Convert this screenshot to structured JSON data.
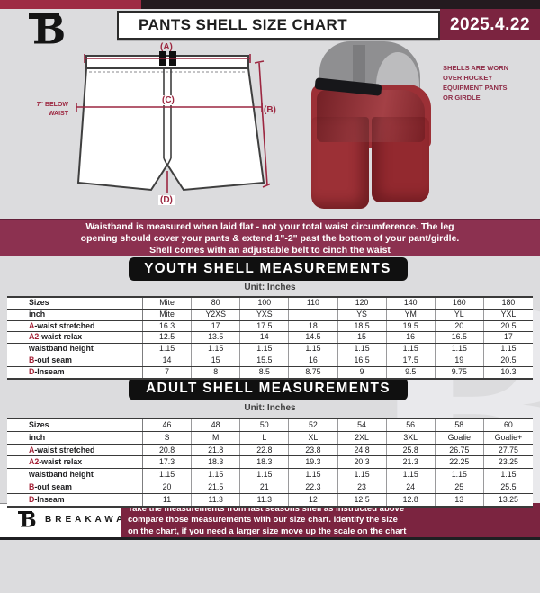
{
  "header": {
    "title": "PANTS SHELL SIZE CHART",
    "date": "2025.4.22",
    "logo_letter": "B"
  },
  "diagram": {
    "label_a": "(A)",
    "label_b": "(B)",
    "label_c": "(C)",
    "label_d": "(D)",
    "waist_note": "7\" BELOW\nWAIST",
    "photo_caption": "SHELLS ARE WORN\nOVER HOCKEY\nEQUIPMENT PANTS\nOR GIRDLE"
  },
  "notice_band": {
    "text": "Waistband is measured when laid flat - not your total waist circumference. The leg\nopening should cover your pants & extend 1\"-2\" past the bottom of your pant/girdle.\nShell comes with an adjustable belt to cinch the waist"
  },
  "youth": {
    "heading": "YOUTH SHELL MEASUREMENTS",
    "unit": "Unit: Inches",
    "table": {
      "rows": [
        {
          "prefix": "",
          "label": "Sizes",
          "values": [
            "Mite",
            "80",
            "100",
            "110",
            "120",
            "140",
            "160",
            "180"
          ]
        },
        {
          "prefix": "",
          "label": "inch",
          "values": [
            "Mite",
            "Y2XS",
            "YXS",
            "",
            "YS",
            "YM",
            "YL",
            "YXL"
          ]
        },
        {
          "prefix": "A",
          "label": "-waist stretched",
          "values": [
            "16.3",
            "17",
            "17.5",
            "18",
            "18.5",
            "19.5",
            "20",
            "20.5"
          ]
        },
        {
          "prefix": "A2",
          "label": "-waist relax",
          "values": [
            "12.5",
            "13.5",
            "14",
            "14.5",
            "15",
            "16",
            "16.5",
            "17"
          ]
        },
        {
          "prefix": "",
          "label": "waistband height",
          "values": [
            "1.15",
            "1.15",
            "1.15",
            "1.15",
            "1.15",
            "1.15",
            "1.15",
            "1.15"
          ]
        },
        {
          "prefix": "B",
          "label": "-out seam",
          "values": [
            "14",
            "15",
            "15.5",
            "16",
            "16.5",
            "17.5",
            "19",
            "20.5"
          ]
        },
        {
          "prefix": "D",
          "label": "-Inseam",
          "values": [
            "7",
            "8",
            "8.5",
            "8.75",
            "9",
            "9.5",
            "9.75",
            "10.3"
          ]
        }
      ]
    }
  },
  "adult": {
    "heading": "ADULT SHELL MEASUREMENTS",
    "unit": "Unit: Inches",
    "table": {
      "rows": [
        {
          "prefix": "",
          "label": "Sizes",
          "values": [
            "46",
            "48",
            "50",
            "52",
            "54",
            "56",
            "58",
            "60"
          ]
        },
        {
          "prefix": "",
          "label": "inch",
          "values": [
            "S",
            "M",
            "L",
            "XL",
            "2XL",
            "3XL",
            "Goalie",
            "Goalie+"
          ]
        },
        {
          "prefix": "A",
          "label": "-waist stretched",
          "values": [
            "20.8",
            "21.8",
            "22.8",
            "23.8",
            "24.8",
            "25.8",
            "26.75",
            "27.75"
          ]
        },
        {
          "prefix": "A2",
          "label": "-waist relax",
          "values": [
            "17.3",
            "18.3",
            "18.3",
            "19.3",
            "20.3",
            "21.3",
            "22.25",
            "23.25"
          ]
        },
        {
          "prefix": "",
          "label": "waistband height",
          "values": [
            "1.15",
            "1.15",
            "1.15",
            "1.15",
            "1.15",
            "1.15",
            "1.15",
            "1.15"
          ]
        },
        {
          "prefix": "B",
          "label": "-out seam",
          "values": [
            "20",
            "21.5",
            "21",
            "22.3",
            "23",
            "24",
            "25",
            "25.5"
          ]
        },
        {
          "prefix": "D",
          "label": "-Inseam",
          "values": [
            "11",
            "11.3",
            "11.3",
            "12",
            "12.5",
            "12.8",
            "13",
            "13.25"
          ]
        }
      ]
    }
  },
  "footer": {
    "brand": "BREAKAWAY",
    "logo_letter": "B",
    "note": "Take the measurements from last seasons shell as instructed above\ncompare those measurements with our size chart. Identify the size\non the chart, if you need a larger size move up the scale on the chart"
  },
  "colors": {
    "crimson": "#9e2b44",
    "maroon_dark": "#7b2440",
    "band": "#8c3150",
    "black_bar": "#101010",
    "page_bg": "#dcdcde",
    "accent_red": "#a31f34"
  }
}
